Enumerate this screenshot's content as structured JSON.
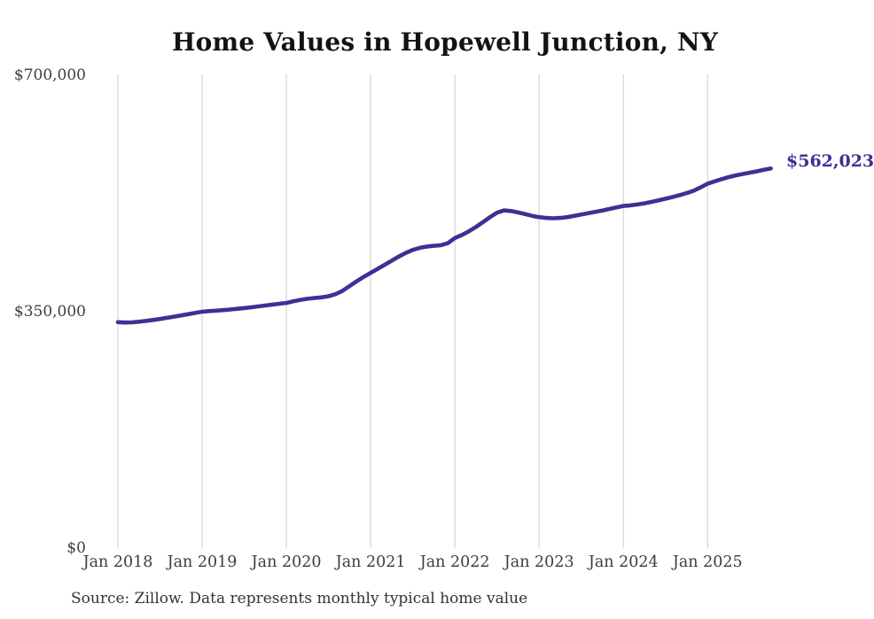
{
  "chart_data": {
    "type": "line",
    "title": "Home Values in Hopewell Junction, NY",
    "series_name": "Monthly typical home value",
    "x": [
      "2018-01",
      "2018-02",
      "2018-03",
      "2018-04",
      "2018-05",
      "2018-06",
      "2018-07",
      "2018-08",
      "2018-09",
      "2018-10",
      "2018-11",
      "2018-12",
      "2019-01",
      "2019-02",
      "2019-03",
      "2019-04",
      "2019-05",
      "2019-06",
      "2019-07",
      "2019-08",
      "2019-09",
      "2019-10",
      "2019-11",
      "2019-12",
      "2020-01",
      "2020-02",
      "2020-03",
      "2020-04",
      "2020-05",
      "2020-06",
      "2020-07",
      "2020-08",
      "2020-09",
      "2020-10",
      "2020-11",
      "2020-12",
      "2021-01",
      "2021-02",
      "2021-03",
      "2021-04",
      "2021-05",
      "2021-06",
      "2021-07",
      "2021-08",
      "2021-09",
      "2021-10",
      "2021-11",
      "2021-12",
      "2022-01",
      "2022-02",
      "2022-03",
      "2022-04",
      "2022-05",
      "2022-06",
      "2022-07",
      "2022-08",
      "2022-09",
      "2022-10",
      "2022-11",
      "2022-12",
      "2023-01",
      "2023-02",
      "2023-03",
      "2023-04",
      "2023-05",
      "2023-06",
      "2023-07",
      "2023-08",
      "2023-09",
      "2023-10",
      "2023-11",
      "2023-12",
      "2024-01",
      "2024-02",
      "2024-03",
      "2024-04",
      "2024-05",
      "2024-06",
      "2024-07",
      "2024-08",
      "2024-09",
      "2024-10",
      "2024-11",
      "2024-12",
      "2025-01",
      "2025-02",
      "2025-03",
      "2025-04",
      "2025-05",
      "2025-06",
      "2025-07",
      "2025-08",
      "2025-09",
      "2025-10"
    ],
    "values": [
      334500,
      334000,
      334300,
      335200,
      336400,
      337800,
      339300,
      341000,
      342700,
      344500,
      346300,
      348200,
      350000,
      350900,
      351600,
      352400,
      353300,
      354300,
      355400,
      356600,
      357900,
      359200,
      360500,
      361800,
      363000,
      365500,
      367500,
      369200,
      370300,
      371200,
      373000,
      376000,
      381000,
      388000,
      395000,
      401500,
      407500,
      413500,
      419500,
      425500,
      431500,
      437000,
      441500,
      444500,
      446500,
      447500,
      448500,
      451500,
      459000,
      463500,
      469000,
      475500,
      482500,
      490000,
      496500,
      500000,
      499000,
      497000,
      494500,
      492000,
      490000,
      488800,
      488300,
      488800,
      490000,
      491800,
      493800,
      495800,
      497800,
      499800,
      502000,
      504300,
      506500,
      507500,
      508800,
      510500,
      512500,
      514800,
      517300,
      519800,
      522500,
      525500,
      529000,
      534000,
      539500,
      543000,
      546200,
      549200,
      551800,
      553900,
      555800,
      557800,
      560000,
      562023
    ],
    "x_ticks": [
      "Jan 2018",
      "Jan 2019",
      "Jan 2020",
      "Jan 2021",
      "Jan 2022",
      "Jan 2023",
      "Jan 2024",
      "Jan 2025"
    ],
    "y_ticks": [
      {
        "label": "$0",
        "value": 0
      },
      {
        "label": "$350,000",
        "value": 350000
      },
      {
        "label": "$700,000",
        "value": 700000
      }
    ],
    "ylim": [
      0,
      700000
    ],
    "grid": "vertical-only",
    "legend": "none",
    "end_label": "$562,023",
    "last_value": 562023,
    "line_color": "#3b3294",
    "grid_color": "#cccccc",
    "source_note": "Source: Zillow. Data represents monthly typical home value"
  }
}
